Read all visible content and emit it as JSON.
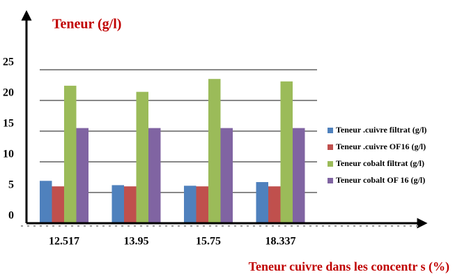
{
  "chart_data": {
    "type": "bar",
    "title": "Teneur (g/l)",
    "x_label": "Teneur cuivre dans les concentr  s (%)",
    "categories": [
      "12.517",
      "13.95",
      "15.75",
      "18.337"
    ],
    "series": [
      {
        "name": "Teneur  .cuivre filtrat (g/l)",
        "color": "#4f81bd",
        "values": [
          6.9,
          6.2,
          6.1,
          6.7
        ]
      },
      {
        "name": "Teneur  .cuivre OF16 (g/l)",
        "color": "#c0504d",
        "values": [
          6,
          6,
          6,
          6
        ]
      },
      {
        "name": "Teneur cobalt filtrat (g/l)",
        "color": "#9bbb59",
        "values": [
          22.4,
          21.4,
          23.5,
          23.1
        ]
      },
      {
        "name": "Teneur cobalt  OF 16 (g/l)",
        "color": "#8064a2",
        "values": [
          15.5,
          15.5,
          15.5,
          15.5
        ]
      }
    ],
    "ylim": [
      0,
      25
    ],
    "yticks": [
      0,
      5,
      10,
      15,
      20,
      25
    ],
    "grid": true,
    "legend": "right"
  }
}
